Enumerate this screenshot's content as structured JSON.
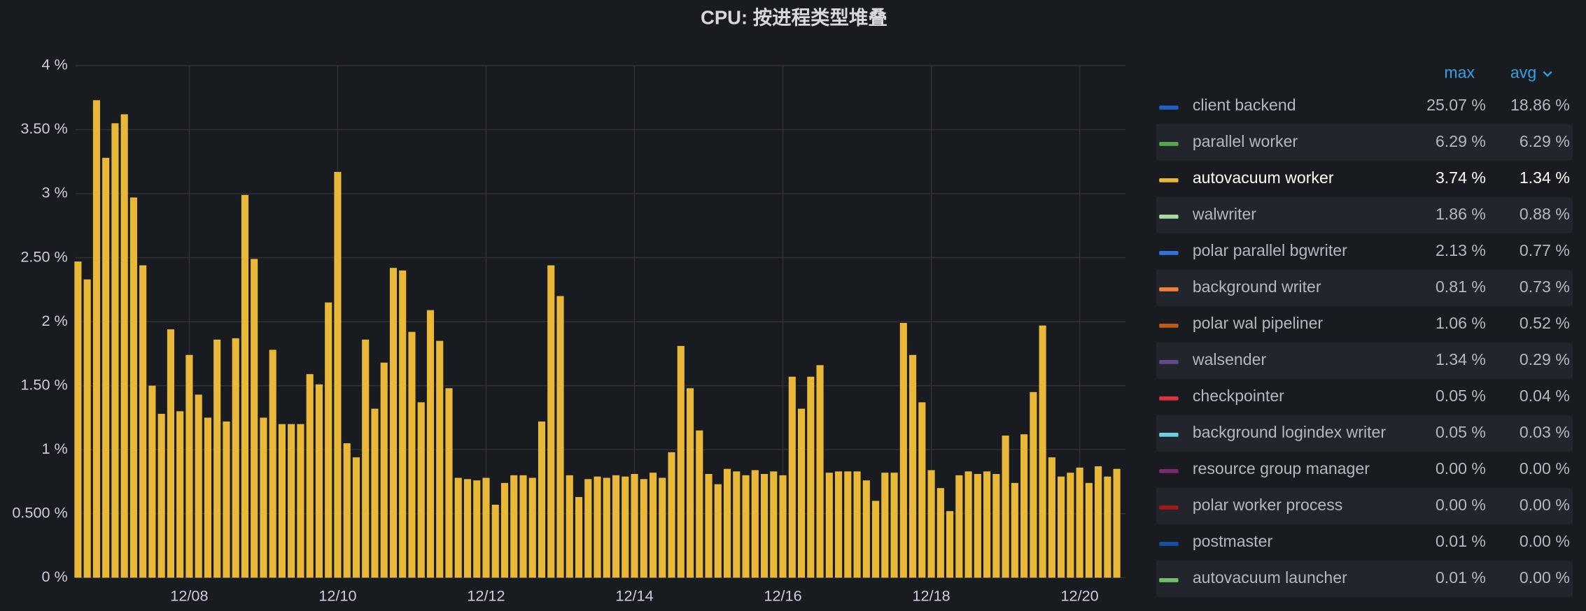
{
  "chart_data": {
    "type": "bar",
    "title": "CPU: 按进程类型堆叠",
    "categories": [
      null,
      null,
      null,
      null,
      null,
      null,
      null,
      null,
      null,
      null,
      null,
      null,
      "12/08",
      null,
      null,
      null,
      null,
      null,
      null,
      null,
      null,
      null,
      null,
      null,
      null,
      null,
      null,
      null,
      "12/10",
      null,
      null,
      null,
      null,
      null,
      null,
      null,
      null,
      null,
      null,
      null,
      null,
      null,
      null,
      null,
      "12/12",
      null,
      null,
      null,
      null,
      null,
      null,
      null,
      null,
      null,
      null,
      null,
      null,
      null,
      null,
      null,
      "12/14",
      null,
      null,
      null,
      null,
      null,
      null,
      null,
      null,
      null,
      null,
      null,
      null,
      null,
      null,
      null,
      "12/16",
      null,
      null,
      null,
      null,
      null,
      null,
      null,
      null,
      null,
      null,
      null,
      null,
      null,
      null,
      null,
      "12/18",
      null,
      null,
      null,
      null,
      null,
      null,
      null,
      null,
      null,
      null,
      null,
      null,
      null,
      null,
      null,
      "12/20",
      null,
      null,
      null,
      null
    ],
    "series": [
      {
        "name": "client backend",
        "color": "#1f60c4",
        "max": "25.07 %",
        "avg": "18.86 %"
      },
      {
        "name": "parallel worker",
        "color": "#56a64b",
        "max": "6.29 %",
        "avg": "6.29 %"
      },
      {
        "name": "autovacuum worker",
        "color": "#eab839",
        "max": "3.74 %",
        "avg": "1.34 %",
        "values": [
          2.47,
          2.33,
          3.73,
          3.28,
          3.55,
          3.62,
          2.97,
          2.44,
          1.5,
          1.28,
          1.94,
          1.3,
          1.74,
          1.43,
          1.25,
          1.86,
          1.22,
          1.87,
          2.99,
          2.49,
          1.25,
          1.78,
          1.2,
          1.2,
          1.2,
          1.59,
          1.51,
          2.15,
          3.17,
          1.05,
          0.94,
          1.86,
          1.32,
          1.68,
          2.42,
          2.4,
          1.92,
          1.37,
          2.09,
          1.85,
          1.48,
          0.78,
          0.77,
          0.76,
          0.78,
          0.57,
          0.74,
          0.8,
          0.8,
          0.78,
          1.22,
          2.44,
          2.2,
          0.8,
          0.63,
          0.77,
          0.79,
          0.78,
          0.8,
          0.79,
          0.81,
          0.77,
          0.82,
          0.78,
          0.98,
          1.81,
          1.48,
          1.15,
          0.81,
          0.73,
          0.85,
          0.83,
          0.8,
          0.84,
          0.81,
          0.83,
          0.8,
          1.57,
          1.32,
          1.57,
          1.66,
          0.82,
          0.83,
          0.83,
          0.83,
          0.76,
          0.6,
          0.82,
          0.82,
          1.99,
          1.74,
          1.37,
          0.84,
          0.7,
          0.52,
          0.8,
          0.83,
          0.81,
          0.83,
          0.81,
          1.11,
          0.74,
          1.12,
          1.45,
          1.97,
          0.94,
          0.79,
          0.82,
          0.86,
          0.74,
          0.87,
          0.79,
          0.85
        ]
      },
      {
        "name": "walwriter",
        "color": "#a9dba0",
        "max": "1.86 %",
        "avg": "0.88 %"
      },
      {
        "name": "polar parallel bgwriter",
        "color": "#3274d9",
        "max": "2.13 %",
        "avg": "0.77 %"
      },
      {
        "name": "background writer",
        "color": "#f2803a",
        "max": "0.81 %",
        "avg": "0.73 %"
      },
      {
        "name": "polar wal pipeliner",
        "color": "#c15c17",
        "max": "1.06 %",
        "avg": "0.52 %"
      },
      {
        "name": "walsender",
        "color": "#5e4a8c",
        "max": "1.34 %",
        "avg": "0.29 %"
      },
      {
        "name": "checkpointer",
        "color": "#e02f44",
        "max": "0.05 %",
        "avg": "0.04 %"
      },
      {
        "name": "background logindex writer",
        "color": "#6ed0e0",
        "max": "0.05 %",
        "avg": "0.03 %"
      },
      {
        "name": "resource group manager",
        "color": "#7a2a6e",
        "max": "0.00 %",
        "avg": "0.00 %"
      },
      {
        "name": "polar worker process",
        "color": "#a11a1a",
        "max": "0.00 %",
        "avg": "0.00 %"
      },
      {
        "name": "postmaster",
        "color": "#1250a0",
        "max": "0.01 %",
        "avg": "0.00 %"
      },
      {
        "name": "autovacuum launcher",
        "color": "#73bf69",
        "max": "0.01 %",
        "avg": "0.00 %"
      }
    ],
    "legend_columns": [
      "max",
      "avg"
    ],
    "ylim": [
      0,
      4
    ],
    "yticks": [
      {
        "value": 0,
        "label": "0 %"
      },
      {
        "value": 0.5,
        "label": "0.500 %"
      },
      {
        "value": 1,
        "label": "1 %"
      },
      {
        "value": 1.5,
        "label": "1.50 %"
      },
      {
        "value": 2,
        "label": "2 %"
      },
      {
        "value": 2.5,
        "label": "2.50 %"
      },
      {
        "value": 3,
        "label": "3 %"
      },
      {
        "value": 3.5,
        "label": "3.50 %"
      },
      {
        "value": 4,
        "label": "4 %"
      }
    ],
    "grid": true
  }
}
